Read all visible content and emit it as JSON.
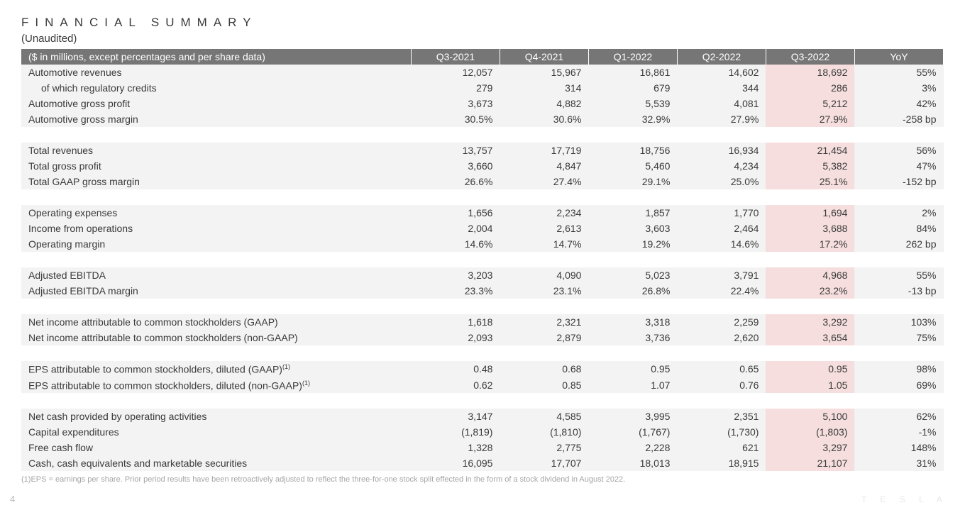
{
  "title": "FINANCIAL SUMMARY",
  "subtitle": "(Unaudited)",
  "table": {
    "header_label": "($ in millions, except percentages and per share data)",
    "columns": [
      "Q3-2021",
      "Q4-2021",
      "Q1-2022",
      "Q2-2022",
      "Q3-2022",
      "YoY"
    ],
    "highlight_col_index": 4,
    "highlight_bg": "#f5dedd",
    "row_bg": "#f3f3f3",
    "header_bg": "#767676",
    "header_fg": "#ffffff",
    "groups": [
      {
        "rows": [
          {
            "label": "Automotive revenues",
            "cells": [
              "12,057",
              "15,967",
              "16,861",
              "14,602",
              "18,692",
              "55%"
            ]
          },
          {
            "label": "of which regulatory credits",
            "indent": true,
            "cells": [
              "279",
              "314",
              "679",
              "344",
              "286",
              "3%"
            ]
          },
          {
            "label": "Automotive gross profit",
            "cells": [
              "3,673",
              "4,882",
              "5,539",
              "4,081",
              "5,212",
              "42%"
            ]
          },
          {
            "label": "Automotive gross margin",
            "cells": [
              "30.5%",
              "30.6%",
              "32.9%",
              "27.9%",
              "27.9%",
              "-258 bp"
            ]
          }
        ]
      },
      {
        "rows": [
          {
            "label": "Total revenues",
            "cells": [
              "13,757",
              "17,719",
              "18,756",
              "16,934",
              "21,454",
              "56%"
            ]
          },
          {
            "label": "Total gross profit",
            "cells": [
              "3,660",
              "4,847",
              "5,460",
              "4,234",
              "5,382",
              "47%"
            ]
          },
          {
            "label": "Total GAAP gross margin",
            "cells": [
              "26.6%",
              "27.4%",
              "29.1%",
              "25.0%",
              "25.1%",
              "-152 bp"
            ]
          }
        ]
      },
      {
        "rows": [
          {
            "label": "Operating expenses",
            "cells": [
              "1,656",
              "2,234",
              "1,857",
              "1,770",
              "1,694",
              "2%"
            ]
          },
          {
            "label": "Income from operations",
            "cells": [
              "2,004",
              "2,613",
              "3,603",
              "2,464",
              "3,688",
              "84%"
            ]
          },
          {
            "label": "Operating margin",
            "cells": [
              "14.6%",
              "14.7%",
              "19.2%",
              "14.6%",
              "17.2%",
              "262 bp"
            ]
          }
        ]
      },
      {
        "rows": [
          {
            "label": "Adjusted EBITDA",
            "cells": [
              "3,203",
              "4,090",
              "5,023",
              "3,791",
              "4,968",
              "55%"
            ]
          },
          {
            "label": "Adjusted EBITDA margin",
            "cells": [
              "23.3%",
              "23.1%",
              "26.8%",
              "22.4%",
              "23.2%",
              "-13 bp"
            ]
          }
        ]
      },
      {
        "rows": [
          {
            "label": "Net income attributable to common stockholders (GAAP)",
            "cells": [
              "1,618",
              "2,321",
              "3,318",
              "2,259",
              "3,292",
              "103%"
            ]
          },
          {
            "label": "Net income attributable to common stockholders (non-GAAP)",
            "cells": [
              "2,093",
              "2,879",
              "3,736",
              "2,620",
              "3,654",
              "75%"
            ]
          }
        ]
      },
      {
        "rows": [
          {
            "label": "EPS attributable to common stockholders, diluted (GAAP)",
            "sup": "(1)",
            "cells": [
              "0.48",
              "0.68",
              "0.95",
              "0.65",
              "0.95",
              "98%"
            ]
          },
          {
            "label": "EPS attributable to common stockholders, diluted (non-GAAP)",
            "sup": "(1)",
            "cells": [
              "0.62",
              "0.85",
              "1.07",
              "0.76",
              "1.05",
              "69%"
            ]
          }
        ]
      },
      {
        "rows": [
          {
            "label": "Net cash provided by operating activities",
            "cells": [
              "3,147",
              "4,585",
              "3,995",
              "2,351",
              "5,100",
              "62%"
            ]
          },
          {
            "label": "Capital expenditures",
            "cells": [
              "(1,819)",
              "(1,810)",
              "(1,767)",
              "(1,730)",
              "(1,803)",
              "-1%"
            ]
          },
          {
            "label": "Free cash flow",
            "cells": [
              "1,328",
              "2,775",
              "2,228",
              "621",
              "3,297",
              "148%"
            ]
          },
          {
            "label": "Cash, cash equivalents and marketable securities",
            "cells": [
              "16,095",
              "17,707",
              "18,013",
              "18,915",
              "21,107",
              "31%"
            ]
          }
        ]
      }
    ]
  },
  "footnote": "(1)EPS = earnings per share. Prior period results have been retroactively adjusted to reflect the three-for-one stock split effected in the form of a stock dividend in August 2022.",
  "page_number": "4",
  "watermark": "T E S L A"
}
